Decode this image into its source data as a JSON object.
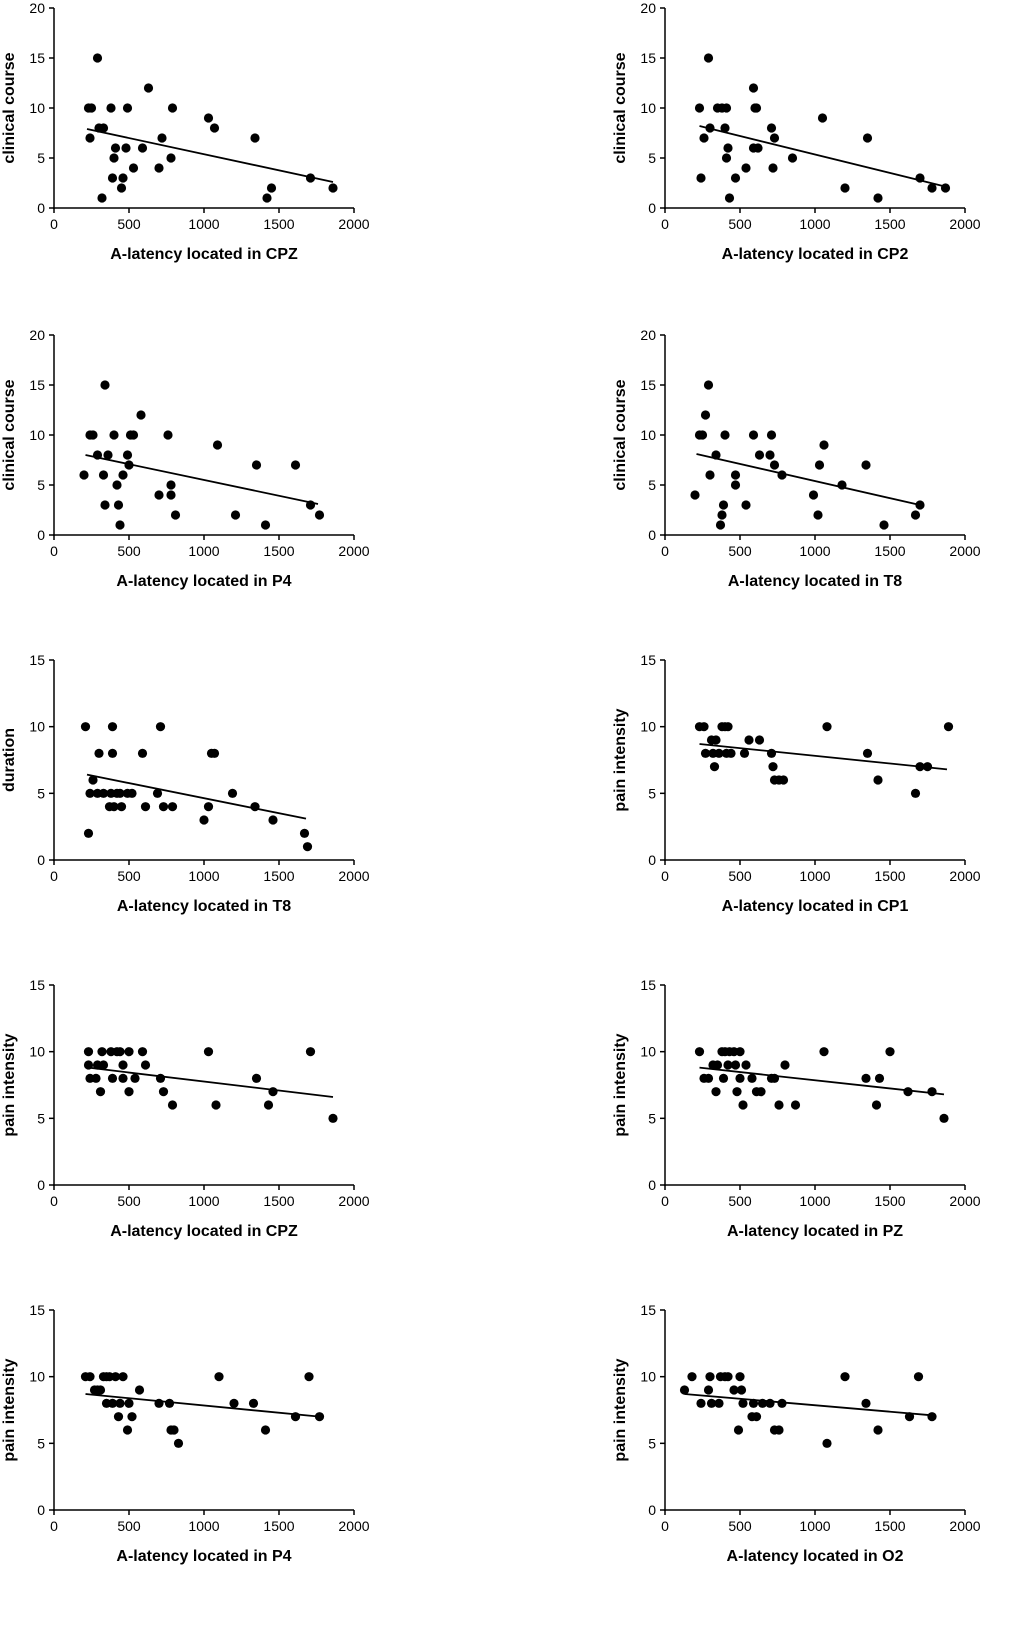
{
  "chart_data": [
    {
      "type": "scatter",
      "xlabel": "A-latency located in CPZ",
      "ylabel": "clinical course",
      "xlim": [
        0,
        2000
      ],
      "ylim": [
        0,
        20
      ],
      "xticks": [
        0,
        500,
        1000,
        1500,
        2000
      ],
      "yticks": [
        0,
        5,
        10,
        15,
        20
      ],
      "points": [
        [
          230,
          10
        ],
        [
          250,
          10
        ],
        [
          240,
          7
        ],
        [
          290,
          15
        ],
        [
          300,
          8
        ],
        [
          320,
          1
        ],
        [
          330,
          8
        ],
        [
          380,
          10
        ],
        [
          390,
          3
        ],
        [
          400,
          5
        ],
        [
          410,
          6
        ],
        [
          450,
          2
        ],
        [
          460,
          3
        ],
        [
          480,
          6
        ],
        [
          490,
          10
        ],
        [
          530,
          4
        ],
        [
          590,
          6
        ],
        [
          630,
          12
        ],
        [
          700,
          4
        ],
        [
          720,
          7
        ],
        [
          780,
          5
        ],
        [
          790,
          10
        ],
        [
          1030,
          9
        ],
        [
          1070,
          8
        ],
        [
          1340,
          7
        ],
        [
          1420,
          1
        ],
        [
          1450,
          2
        ],
        [
          1710,
          3
        ],
        [
          1860,
          2
        ]
      ],
      "fit": [
        [
          220,
          7.9
        ],
        [
          1860,
          2.6
        ]
      ]
    },
    {
      "type": "scatter",
      "xlabel": "A-latency located in CP2",
      "ylabel": "clinical course",
      "xlim": [
        0,
        2000
      ],
      "ylim": [
        0,
        20
      ],
      "xticks": [
        0,
        500,
        1000,
        1500,
        2000
      ],
      "yticks": [
        0,
        5,
        10,
        15,
        20
      ],
      "points": [
        [
          230,
          10
        ],
        [
          240,
          3
        ],
        [
          260,
          7
        ],
        [
          290,
          15
        ],
        [
          300,
          8
        ],
        [
          350,
          10
        ],
        [
          380,
          10
        ],
        [
          400,
          8
        ],
        [
          410,
          10
        ],
        [
          410,
          5
        ],
        [
          420,
          6
        ],
        [
          430,
          1
        ],
        [
          470,
          3
        ],
        [
          540,
          4
        ],
        [
          590,
          12
        ],
        [
          590,
          6
        ],
        [
          600,
          10
        ],
        [
          610,
          10
        ],
        [
          620,
          6
        ],
        [
          710,
          8
        ],
        [
          720,
          4
        ],
        [
          730,
          7
        ],
        [
          850,
          5
        ],
        [
          1050,
          9
        ],
        [
          1200,
          2
        ],
        [
          1350,
          7
        ],
        [
          1420,
          1
        ],
        [
          1700,
          3
        ],
        [
          1780,
          2
        ],
        [
          1870,
          2
        ]
      ],
      "fit": [
        [
          230,
          8.2
        ],
        [
          1880,
          2.1
        ]
      ]
    },
    {
      "type": "scatter",
      "xlabel": "A-latency located in P4",
      "ylabel": "clinical course",
      "xlim": [
        0,
        2000
      ],
      "ylim": [
        0,
        20
      ],
      "xticks": [
        0,
        500,
        1000,
        1500,
        2000
      ],
      "yticks": [
        0,
        5,
        10,
        15,
        20
      ],
      "points": [
        [
          200,
          6
        ],
        [
          240,
          10
        ],
        [
          260,
          10
        ],
        [
          290,
          8
        ],
        [
          340,
          15
        ],
        [
          330,
          6
        ],
        [
          340,
          3
        ],
        [
          360,
          8
        ],
        [
          400,
          10
        ],
        [
          420,
          5
        ],
        [
          430,
          3
        ],
        [
          440,
          1
        ],
        [
          460,
          6
        ],
        [
          490,
          8
        ],
        [
          500,
          7
        ],
        [
          510,
          10
        ],
        [
          530,
          10
        ],
        [
          580,
          12
        ],
        [
          700,
          4
        ],
        [
          760,
          10
        ],
        [
          780,
          5
        ],
        [
          780,
          4
        ],
        [
          810,
          2
        ],
        [
          1090,
          9
        ],
        [
          1210,
          2
        ],
        [
          1350,
          7
        ],
        [
          1410,
          1
        ],
        [
          1610,
          7
        ],
        [
          1710,
          3
        ],
        [
          1770,
          2
        ]
      ],
      "fit": [
        [
          210,
          8.0
        ],
        [
          1760,
          3.1
        ]
      ]
    },
    {
      "type": "scatter",
      "xlabel": "A-latency located in T8",
      "ylabel": "clinical course",
      "xlim": [
        0,
        2000
      ],
      "ylim": [
        0,
        20
      ],
      "xticks": [
        0,
        500,
        1000,
        1500,
        2000
      ],
      "yticks": [
        0,
        5,
        10,
        15,
        20
      ],
      "points": [
        [
          200,
          4
        ],
        [
          230,
          10
        ],
        [
          250,
          10
        ],
        [
          270,
          12
        ],
        [
          290,
          15
        ],
        [
          300,
          6
        ],
        [
          340,
          8
        ],
        [
          370,
          1
        ],
        [
          380,
          2
        ],
        [
          390,
          3
        ],
        [
          400,
          10
        ],
        [
          470,
          5
        ],
        [
          470,
          6
        ],
        [
          540,
          3
        ],
        [
          590,
          10
        ],
        [
          630,
          8
        ],
        [
          700,
          8
        ],
        [
          710,
          10
        ],
        [
          730,
          7
        ],
        [
          780,
          6
        ],
        [
          990,
          4
        ],
        [
          1020,
          2
        ],
        [
          1030,
          7
        ],
        [
          1060,
          9
        ],
        [
          1180,
          5
        ],
        [
          1340,
          7
        ],
        [
          1460,
          1
        ],
        [
          1670,
          2
        ],
        [
          1700,
          3
        ]
      ],
      "fit": [
        [
          210,
          8.1
        ],
        [
          1700,
          3.0
        ]
      ]
    },
    {
      "type": "scatter",
      "xlabel": "A-latency located in T8",
      "ylabel": "duration",
      "xlim": [
        0,
        2000
      ],
      "ylim": [
        0,
        15
      ],
      "xticks": [
        0,
        500,
        1000,
        1500,
        2000
      ],
      "yticks": [
        0,
        5,
        10,
        15
      ],
      "points": [
        [
          210,
          10
        ],
        [
          230,
          2
        ],
        [
          240,
          5
        ],
        [
          260,
          6
        ],
        [
          290,
          5
        ],
        [
          300,
          8
        ],
        [
          330,
          5
        ],
        [
          370,
          4
        ],
        [
          380,
          5
        ],
        [
          390,
          8
        ],
        [
          390,
          10
        ],
        [
          400,
          4
        ],
        [
          420,
          5
        ],
        [
          440,
          5
        ],
        [
          450,
          4
        ],
        [
          490,
          5
        ],
        [
          520,
          5
        ],
        [
          590,
          8
        ],
        [
          610,
          4
        ],
        [
          690,
          5
        ],
        [
          710,
          10
        ],
        [
          730,
          4
        ],
        [
          790,
          4
        ],
        [
          1000,
          3
        ],
        [
          1030,
          4
        ],
        [
          1050,
          8
        ],
        [
          1070,
          8
        ],
        [
          1190,
          5
        ],
        [
          1340,
          4
        ],
        [
          1460,
          3
        ],
        [
          1670,
          2
        ],
        [
          1690,
          1
        ]
      ],
      "fit": [
        [
          220,
          6.4
        ],
        [
          1680,
          3.1
        ]
      ]
    },
    {
      "type": "scatter",
      "xlabel": "A-latency located in CP1",
      "ylabel": "pain intensity",
      "xlim": [
        0,
        2000
      ],
      "ylim": [
        0,
        15
      ],
      "xticks": [
        0,
        500,
        1000,
        1500,
        2000
      ],
      "yticks": [
        0,
        5,
        10,
        15
      ],
      "points": [
        [
          230,
          10
        ],
        [
          260,
          10
        ],
        [
          270,
          8
        ],
        [
          310,
          9
        ],
        [
          320,
          8
        ],
        [
          330,
          7
        ],
        [
          340,
          9
        ],
        [
          360,
          8
        ],
        [
          380,
          10
        ],
        [
          400,
          10
        ],
        [
          410,
          8
        ],
        [
          420,
          10
        ],
        [
          440,
          8
        ],
        [
          530,
          8
        ],
        [
          560,
          9
        ],
        [
          630,
          9
        ],
        [
          710,
          8
        ],
        [
          720,
          7
        ],
        [
          730,
          6
        ],
        [
          760,
          6
        ],
        [
          790,
          6
        ],
        [
          1080,
          10
        ],
        [
          1350,
          8
        ],
        [
          1420,
          6
        ],
        [
          1670,
          5
        ],
        [
          1700,
          7
        ],
        [
          1750,
          7
        ],
        [
          1890,
          10
        ]
      ],
      "fit": [
        [
          230,
          8.7
        ],
        [
          1880,
          6.8
        ]
      ]
    },
    {
      "type": "scatter",
      "xlabel": "A-latency located in CPZ",
      "ylabel": "pain intensity",
      "xlim": [
        0,
        2000
      ],
      "ylim": [
        0,
        15
      ],
      "xticks": [
        0,
        500,
        1000,
        1500,
        2000
      ],
      "yticks": [
        0,
        5,
        10,
        15
      ],
      "points": [
        [
          230,
          10
        ],
        [
          230,
          9
        ],
        [
          240,
          8
        ],
        [
          280,
          8
        ],
        [
          290,
          9
        ],
        [
          310,
          7
        ],
        [
          320,
          10
        ],
        [
          330,
          9
        ],
        [
          380,
          10
        ],
        [
          390,
          8
        ],
        [
          420,
          10
        ],
        [
          440,
          10
        ],
        [
          460,
          9
        ],
        [
          460,
          8
        ],
        [
          500,
          10
        ],
        [
          500,
          7
        ],
        [
          540,
          8
        ],
        [
          590,
          10
        ],
        [
          610,
          9
        ],
        [
          710,
          8
        ],
        [
          730,
          7
        ],
        [
          790,
          6
        ],
        [
          1030,
          10
        ],
        [
          1080,
          6
        ],
        [
          1350,
          8
        ],
        [
          1430,
          6
        ],
        [
          1460,
          7
        ],
        [
          1710,
          10
        ],
        [
          1860,
          5
        ]
      ],
      "fit": [
        [
          230,
          8.8
        ],
        [
          1860,
          6.6
        ]
      ]
    },
    {
      "type": "scatter",
      "xlabel": "A-latency located in PZ",
      "ylabel": "pain intensity",
      "xlim": [
        0,
        2000
      ],
      "ylim": [
        0,
        15
      ],
      "xticks": [
        0,
        500,
        1000,
        1500,
        2000
      ],
      "yticks": [
        0,
        5,
        10,
        15
      ],
      "points": [
        [
          230,
          10
        ],
        [
          260,
          8
        ],
        [
          290,
          8
        ],
        [
          320,
          9
        ],
        [
          340,
          7
        ],
        [
          350,
          9
        ],
        [
          380,
          10
        ],
        [
          390,
          8
        ],
        [
          400,
          10
        ],
        [
          420,
          9
        ],
        [
          430,
          10
        ],
        [
          460,
          10
        ],
        [
          470,
          9
        ],
        [
          480,
          7
        ],
        [
          500,
          10
        ],
        [
          500,
          8
        ],
        [
          520,
          6
        ],
        [
          540,
          9
        ],
        [
          580,
          8
        ],
        [
          610,
          7
        ],
        [
          640,
          7
        ],
        [
          710,
          8
        ],
        [
          730,
          8
        ],
        [
          760,
          6
        ],
        [
          800,
          9
        ],
        [
          870,
          6
        ],
        [
          1060,
          10
        ],
        [
          1340,
          8
        ],
        [
          1410,
          6
        ],
        [
          1430,
          8
        ],
        [
          1500,
          10
        ],
        [
          1620,
          7
        ],
        [
          1780,
          7
        ],
        [
          1860,
          5
        ]
      ],
      "fit": [
        [
          230,
          8.8
        ],
        [
          1860,
          6.8
        ]
      ]
    },
    {
      "type": "scatter",
      "xlabel": "A-latency located in P4",
      "ylabel": "pain intensity",
      "xlim": [
        0,
        2000
      ],
      "ylim": [
        0,
        15
      ],
      "xticks": [
        0,
        500,
        1000,
        1500,
        2000
      ],
      "yticks": [
        0,
        5,
        10,
        15
      ],
      "points": [
        [
          210,
          10
        ],
        [
          240,
          10
        ],
        [
          270,
          9
        ],
        [
          290,
          9
        ],
        [
          310,
          9
        ],
        [
          330,
          10
        ],
        [
          350,
          10
        ],
        [
          350,
          8
        ],
        [
          370,
          10
        ],
        [
          390,
          8
        ],
        [
          410,
          10
        ],
        [
          430,
          7
        ],
        [
          440,
          8
        ],
        [
          460,
          10
        ],
        [
          490,
          6
        ],
        [
          500,
          8
        ],
        [
          520,
          7
        ],
        [
          570,
          9
        ],
        [
          700,
          8
        ],
        [
          770,
          8
        ],
        [
          780,
          6
        ],
        [
          800,
          6
        ],
        [
          830,
          5
        ],
        [
          1100,
          10
        ],
        [
          1200,
          8
        ],
        [
          1330,
          8
        ],
        [
          1410,
          6
        ],
        [
          1610,
          7
        ],
        [
          1700,
          10
        ],
        [
          1770,
          7
        ]
      ],
      "fit": [
        [
          210,
          8.7
        ],
        [
          1770,
          7.0
        ]
      ]
    },
    {
      "type": "scatter",
      "xlabel": "A-latency located in O2",
      "ylabel": "pain intensity",
      "xlim": [
        0,
        2000
      ],
      "ylim": [
        0,
        15
      ],
      "xticks": [
        0,
        500,
        1000,
        1500,
        2000
      ],
      "yticks": [
        0,
        5,
        10,
        15
      ],
      "points": [
        [
          130,
          9
        ],
        [
          180,
          10
        ],
        [
          240,
          8
        ],
        [
          290,
          9
        ],
        [
          300,
          10
        ],
        [
          310,
          8
        ],
        [
          360,
          8
        ],
        [
          370,
          10
        ],
        [
          400,
          10
        ],
        [
          420,
          10
        ],
        [
          460,
          9
        ],
        [
          490,
          6
        ],
        [
          500,
          10
        ],
        [
          510,
          9
        ],
        [
          520,
          8
        ],
        [
          580,
          7
        ],
        [
          590,
          8
        ],
        [
          610,
          7
        ],
        [
          650,
          8
        ],
        [
          700,
          8
        ],
        [
          730,
          6
        ],
        [
          760,
          6
        ],
        [
          780,
          8
        ],
        [
          1080,
          5
        ],
        [
          1200,
          10
        ],
        [
          1340,
          8
        ],
        [
          1420,
          6
        ],
        [
          1630,
          7
        ],
        [
          1690,
          10
        ],
        [
          1780,
          7
        ]
      ],
      "fit": [
        [
          130,
          8.7
        ],
        [
          1780,
          7.1
        ]
      ]
    }
  ]
}
